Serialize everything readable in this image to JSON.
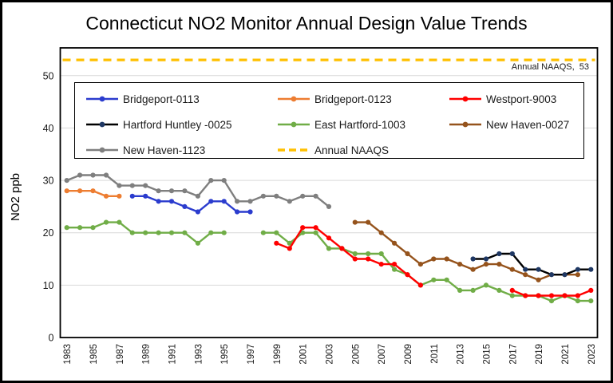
{
  "title": "Connecticut NO2 Monitor Annual Design Value Trends",
  "y_axis_label": "NO2 ppb",
  "naaqs_annotation": "Annual NAAQS,  53",
  "chart_data": {
    "type": "line",
    "x_range": [
      1983,
      2023
    ],
    "x_tick_years": [
      1983,
      1985,
      1987,
      1989,
      1991,
      1993,
      1995,
      1997,
      1999,
      2001,
      2003,
      2005,
      2007,
      2009,
      2011,
      2013,
      2015,
      2017,
      2019,
      2021,
      2023
    ],
    "ylim": [
      0,
      55.3
    ],
    "yticks": [
      0,
      10,
      20,
      30,
      40,
      50
    ],
    "grid": "horizontal",
    "gridline_color": "#d9d9d9",
    "legend_position": "inside-top",
    "naaqs_value": 53,
    "series": [
      {
        "name": "Bridgeport-0113",
        "color": "#2b3cce",
        "points": [
          [
            1988,
            27
          ],
          [
            1989,
            27
          ],
          [
            1990,
            26
          ],
          [
            1991,
            26
          ],
          [
            1992,
            25
          ],
          [
            1993,
            24
          ],
          [
            1994,
            26
          ],
          [
            1995,
            26
          ],
          [
            1996,
            24
          ],
          [
            1997,
            24
          ]
        ]
      },
      {
        "name": "Bridgeport-0123",
        "color": "#ed7d31",
        "points": [
          [
            1983,
            28
          ],
          [
            1984,
            28
          ],
          [
            1985,
            28
          ],
          [
            1986,
            27
          ],
          [
            1987,
            27
          ]
        ]
      },
      {
        "name": "Westport-9003",
        "color": "#ff0000",
        "points": [
          [
            1999,
            18
          ],
          [
            2000,
            17
          ],
          [
            2001,
            21
          ],
          [
            2002,
            21
          ],
          [
            2003,
            19
          ],
          [
            2004,
            17
          ],
          [
            2005,
            15
          ],
          [
            2006,
            15
          ],
          [
            2007,
            14
          ],
          [
            2008,
            14
          ],
          [
            2009,
            12
          ],
          [
            2010,
            10
          ],
          [
            2017,
            9
          ],
          [
            2018,
            8
          ],
          [
            2019,
            8
          ],
          [
            2020,
            8
          ],
          [
            2021,
            8
          ],
          [
            2022,
            8
          ],
          [
            2023,
            9
          ]
        ]
      },
      {
        "name": "Hartford Huntley -0025",
        "color": "#000000",
        "marker_color": "#1f3864",
        "points": [
          [
            2014,
            15
          ],
          [
            2015,
            15
          ],
          [
            2016,
            16
          ],
          [
            2017,
            16
          ],
          [
            2018,
            13
          ],
          [
            2019,
            13
          ],
          [
            2020,
            12
          ],
          [
            2021,
            12
          ],
          [
            2022,
            13
          ],
          [
            2023,
            13
          ]
        ]
      },
      {
        "name": "East Hartford-1003",
        "color": "#70ad47",
        "points": [
          [
            1983,
            21
          ],
          [
            1984,
            21
          ],
          [
            1985,
            21
          ],
          [
            1986,
            22
          ],
          [
            1987,
            22
          ],
          [
            1988,
            20
          ],
          [
            1989,
            20
          ],
          [
            1990,
            20
          ],
          [
            1991,
            20
          ],
          [
            1992,
            20
          ],
          [
            1993,
            18
          ],
          [
            1994,
            20
          ],
          [
            1995,
            20
          ],
          [
            1998,
            20
          ],
          [
            1999,
            20
          ],
          [
            2000,
            18
          ],
          [
            2001,
            20
          ],
          [
            2002,
            20
          ],
          [
            2003,
            17
          ],
          [
            2004,
            17
          ],
          [
            2005,
            16
          ],
          [
            2006,
            16
          ],
          [
            2007,
            16
          ],
          [
            2008,
            13
          ],
          [
            2009,
            12
          ],
          [
            2010,
            10
          ],
          [
            2011,
            11
          ],
          [
            2012,
            11
          ],
          [
            2013,
            9
          ],
          [
            2014,
            9
          ],
          [
            2015,
            10
          ],
          [
            2016,
            9
          ],
          [
            2017,
            8
          ],
          [
            2018,
            8
          ],
          [
            2019,
            8
          ],
          [
            2020,
            7
          ],
          [
            2021,
            8
          ],
          [
            2022,
            7
          ],
          [
            2023,
            7
          ]
        ]
      },
      {
        "name": "New Haven-0027",
        "color": "#95531c",
        "points": [
          [
            2005,
            22
          ],
          [
            2006,
            22
          ],
          [
            2007,
            20
          ],
          [
            2008,
            18
          ],
          [
            2009,
            16
          ],
          [
            2010,
            14
          ],
          [
            2011,
            15
          ],
          [
            2012,
            15
          ],
          [
            2013,
            14
          ],
          [
            2014,
            13
          ],
          [
            2015,
            14
          ],
          [
            2016,
            14
          ],
          [
            2017,
            13
          ],
          [
            2018,
            12
          ],
          [
            2019,
            11
          ],
          [
            2020,
            12
          ],
          [
            2021,
            12
          ],
          [
            2022,
            12
          ]
        ]
      },
      {
        "name": "New Haven-1123",
        "color": "#7f7f7f",
        "points": [
          [
            1983,
            30
          ],
          [
            1984,
            31
          ],
          [
            1985,
            31
          ],
          [
            1986,
            31
          ],
          [
            1987,
            29
          ],
          [
            1988,
            29
          ],
          [
            1989,
            29
          ],
          [
            1990,
            28
          ],
          [
            1991,
            28
          ],
          [
            1992,
            28
          ],
          [
            1993,
            27
          ],
          [
            1994,
            30
          ],
          [
            1995,
            30
          ],
          [
            1996,
            26
          ],
          [
            1997,
            26
          ],
          [
            1998,
            27
          ],
          [
            1999,
            27
          ],
          [
            2000,
            26
          ],
          [
            2001,
            27
          ],
          [
            2002,
            27
          ],
          [
            2003,
            25
          ]
        ]
      },
      {
        "name": "Annual NAAQS",
        "color": "#ffc000",
        "style": "dashed",
        "value": 53
      }
    ]
  }
}
